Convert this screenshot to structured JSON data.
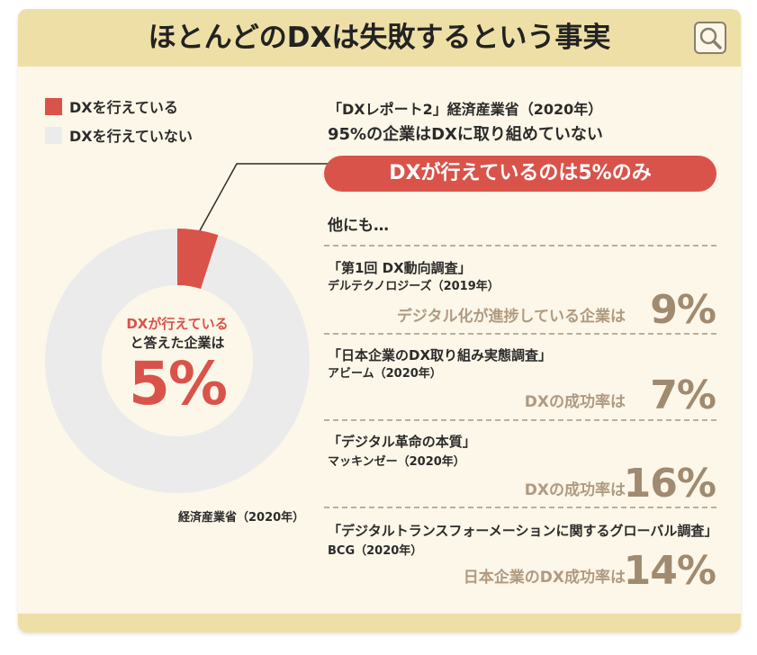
{
  "title": "ほとんどのDXは失敗するという事実",
  "icons": {
    "search": "search-icon"
  },
  "colors": {
    "accent": "#d9534a",
    "neutral": "#eeeeee",
    "header": "#eedfa6",
    "background": "#fcf7e8",
    "stat": "#a08a70"
  },
  "chart_data": {
    "type": "pie",
    "legend": [
      "DXを行えている",
      "DXを行えていない"
    ],
    "values": [
      5,
      95
    ],
    "center_label_line1": "DXが行えている",
    "center_label_line2": "と答えた企業は",
    "center_value": "5%",
    "source": "経済産業省（2020年）"
  },
  "main": {
    "report_ref": "「DXレポート2」経済産業省（2020年）",
    "report_stat": "95%の企業はDXに取り組めていない",
    "highlight": "DXが行えているのは5%のみ",
    "others_label": "他にも…"
  },
  "studies": [
    {
      "title": "「第1回 DX動向調査」",
      "source": "デルテクノロジーズ（2019年）",
      "desc": "デジタル化が進捗している企業は",
      "value": "9%"
    },
    {
      "title": "「日本企業のDX取り組み実態調査」",
      "source": "アビーム（2020年）",
      "desc": "DXの成功率は",
      "value": "7%"
    },
    {
      "title": "「デジタル革命の本質」",
      "source": "マッキンゼー（2020年）",
      "desc": "DXの成功率は",
      "value": "16%"
    },
    {
      "title": "「デジタルトランスフォーメーションに関するグローバル調査」",
      "source": "BCG（2020年）",
      "desc": "日本企業のDX成功率は",
      "value": "14%"
    }
  ]
}
